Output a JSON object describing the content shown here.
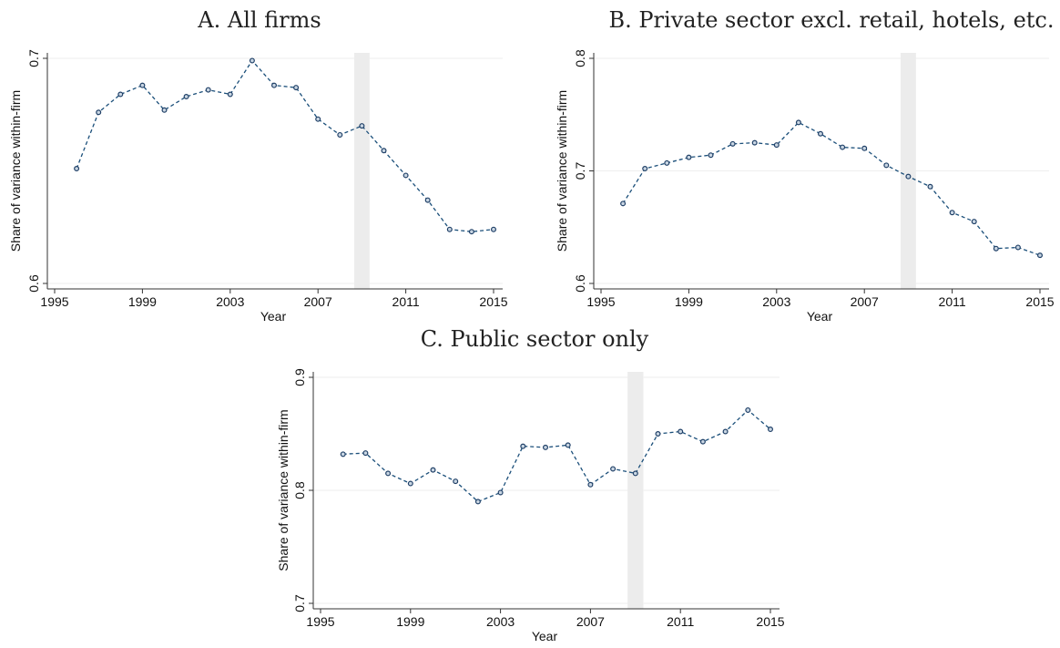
{
  "chart_data": [
    {
      "type": "line",
      "title": "A. All firms",
      "xlabel": "Year",
      "ylabel": "Share of variance within-firm",
      "xlim": [
        1995,
        2015
      ],
      "ylim": [
        0.6,
        0.7
      ],
      "xticks": [
        "1995",
        "1999",
        "2003",
        "2007",
        "2011",
        "2015"
      ],
      "yticks": [
        "0.6",
        "0.7"
      ],
      "shaded_year": 2009,
      "grid": true,
      "series": [
        {
          "x": [
            1996,
            1997,
            1998,
            1999,
            2000,
            2001,
            2002,
            2003,
            2004,
            2005,
            2006,
            2007,
            2008,
            2009,
            2010,
            2011,
            2012,
            2013,
            2014,
            2015
          ],
          "values": [
            0.651,
            0.676,
            0.684,
            0.688,
            0.677,
            0.683,
            0.686,
            0.684,
            0.699,
            0.688,
            0.687,
            0.673,
            0.666,
            0.67,
            0.659,
            0.648,
            0.637,
            0.624,
            0.623,
            0.624
          ]
        }
      ]
    },
    {
      "type": "line",
      "title": "B. Private sector excl. retail, hotels, etc.",
      "xlabel": "Year",
      "ylabel": "Share of variance within-firm",
      "xlim": [
        1995,
        2015
      ],
      "ylim": [
        0.6,
        0.8
      ],
      "xticks": [
        "1995",
        "1999",
        "2003",
        "2007",
        "2011",
        "2015"
      ],
      "yticks": [
        "0.6",
        "0.7",
        "0.8"
      ],
      "shaded_year": 2009,
      "grid": true,
      "series": [
        {
          "x": [
            1996,
            1997,
            1998,
            1999,
            2000,
            2001,
            2002,
            2003,
            2004,
            2005,
            2006,
            2007,
            2008,
            2009,
            2010,
            2011,
            2012,
            2013,
            2014,
            2015
          ],
          "values": [
            0.671,
            0.702,
            0.707,
            0.712,
            0.714,
            0.724,
            0.725,
            0.723,
            0.743,
            0.733,
            0.721,
            0.72,
            0.705,
            0.695,
            0.686,
            0.663,
            0.655,
            0.631,
            0.632,
            0.625
          ]
        }
      ]
    },
    {
      "type": "line",
      "title": "C. Public sector only",
      "xlabel": "Year",
      "ylabel": "Share of variance within-firm",
      "xlim": [
        1995,
        2015
      ],
      "ylim": [
        0.7,
        0.9
      ],
      "xticks": [
        "1995",
        "1999",
        "2003",
        "2007",
        "2011",
        "2015"
      ],
      "yticks": [
        "0.7",
        "0.8",
        "0.9"
      ],
      "shaded_year": 2009,
      "grid": true,
      "series": [
        {
          "x": [
            1996,
            1997,
            1998,
            1999,
            2000,
            2001,
            2002,
            2003,
            2004,
            2005,
            2006,
            2007,
            2008,
            2009,
            2010,
            2011,
            2012,
            2013,
            2014,
            2015
          ],
          "values": [
            0.832,
            0.833,
            0.815,
            0.806,
            0.818,
            0.808,
            0.79,
            0.798,
            0.839,
            0.838,
            0.84,
            0.805,
            0.819,
            0.815,
            0.85,
            0.852,
            0.843,
            0.852,
            0.871,
            0.854
          ]
        }
      ]
    }
  ],
  "colors": {
    "series_line": "#1b4f7a",
    "marker_edge": "#1f3f66",
    "shade": "#ececec",
    "axis": "#333333"
  }
}
